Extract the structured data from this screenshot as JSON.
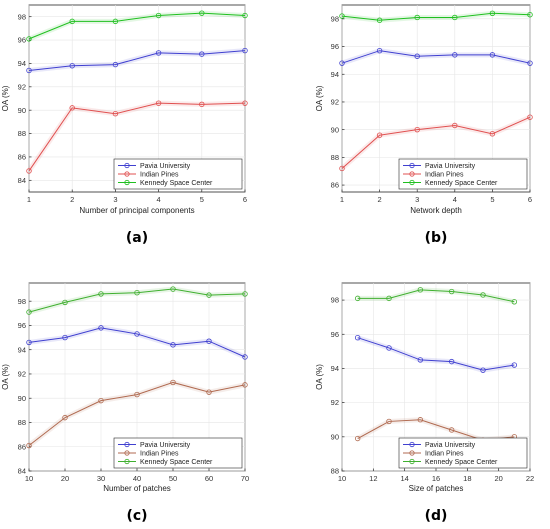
{
  "chart_data": [
    {
      "type": "line",
      "panel_label": "(a)",
      "xlabel": "Number of principal components",
      "ylabel": "OA (%)",
      "x": [
        1,
        2,
        3,
        4,
        5,
        6
      ],
      "xlim": [
        1,
        6
      ],
      "ylim": [
        83,
        99
      ],
      "xticks": [
        1,
        2,
        3,
        4,
        5,
        6
      ],
      "yticks": [
        84,
        86,
        88,
        90,
        92,
        94,
        96,
        98
      ],
      "grid": true,
      "legend_position": "bottom-right",
      "series": [
        {
          "name": "Pavia University",
          "color": "#4040d0",
          "values": [
            93.4,
            93.8,
            93.9,
            94.9,
            94.8,
            95.1
          ]
        },
        {
          "name": "Indian Pines",
          "color": "#e05050",
          "values": [
            84.8,
            90.2,
            89.7,
            90.6,
            90.5,
            90.6
          ]
        },
        {
          "name": "Kennedy Space Center",
          "color": "#20c020",
          "values": [
            96.1,
            97.6,
            97.6,
            98.1,
            98.3,
            98.1
          ]
        }
      ]
    },
    {
      "type": "line",
      "panel_label": "(b)",
      "xlabel": "Network depth",
      "ylabel": "OA (%)",
      "x": [
        1,
        2,
        3,
        4,
        5,
        6
      ],
      "xlim": [
        1,
        6
      ],
      "ylim": [
        85.5,
        99
      ],
      "xticks": [
        1,
        2,
        3,
        4,
        5,
        6
      ],
      "yticks": [
        86,
        88,
        90,
        92,
        94,
        96,
        98
      ],
      "grid": true,
      "legend_position": "bottom-right",
      "series": [
        {
          "name": "Pavia University",
          "color": "#4040d0",
          "values": [
            94.8,
            95.7,
            95.3,
            95.4,
            95.4,
            94.8
          ]
        },
        {
          "name": "Indian Pines",
          "color": "#e05050",
          "values": [
            87.2,
            89.6,
            90.0,
            90.3,
            89.7,
            90.9
          ]
        },
        {
          "name": "Kennedy Space Center",
          "color": "#20c020",
          "values": [
            98.2,
            97.9,
            98.1,
            98.1,
            98.4,
            98.3
          ]
        }
      ]
    },
    {
      "type": "line",
      "panel_label": "(c)",
      "xlabel": "Number of patches",
      "ylabel": "OA (%)",
      "x": [
        10,
        20,
        30,
        40,
        50,
        60,
        70
      ],
      "xlim": [
        10,
        70
      ],
      "ylim": [
        84,
        99.5
      ],
      "xticks": [
        10,
        20,
        30,
        40,
        50,
        60,
        70
      ],
      "yticks": [
        84,
        86,
        88,
        90,
        92,
        94,
        96,
        98
      ],
      "grid": true,
      "legend_position": "bottom-right",
      "series": [
        {
          "name": "Pavia University",
          "color": "#4040d0",
          "values": [
            94.6,
            95.0,
            95.8,
            95.3,
            94.4,
            94.7,
            93.4
          ]
        },
        {
          "name": "Indian Pines",
          "color": "#b06a50",
          "values": [
            86.1,
            88.4,
            89.8,
            90.3,
            91.3,
            90.5,
            91.1
          ]
        },
        {
          "name": "Kennedy Space Center",
          "color": "#40b030",
          "values": [
            97.1,
            97.9,
            98.6,
            98.7,
            99.0,
            98.5,
            98.6
          ]
        }
      ]
    },
    {
      "type": "line",
      "panel_label": "(d)",
      "xlabel": "Size of patches",
      "ylabel": "OA (%)",
      "x": [
        11,
        13,
        15,
        17,
        19,
        21
      ],
      "xlim": [
        10,
        22
      ],
      "ylim": [
        88,
        99
      ],
      "xticks": [
        10,
        12,
        14,
        16,
        18,
        20,
        22
      ],
      "yticks": [
        88,
        90,
        92,
        94,
        96,
        98
      ],
      "grid": true,
      "legend_position": "bottom-right",
      "series": [
        {
          "name": "Pavia University",
          "color": "#4040d0",
          "values": [
            95.8,
            95.2,
            94.5,
            94.4,
            93.9,
            94.2
          ]
        },
        {
          "name": "Indian Pines",
          "color": "#b06a50",
          "values": [
            89.9,
            90.9,
            91.0,
            90.4,
            89.8,
            90.0
          ]
        },
        {
          "name": "Kennedy Space Center",
          "color": "#40b030",
          "values": [
            98.1,
            98.1,
            98.6,
            98.5,
            98.3,
            97.9
          ]
        }
      ]
    }
  ]
}
